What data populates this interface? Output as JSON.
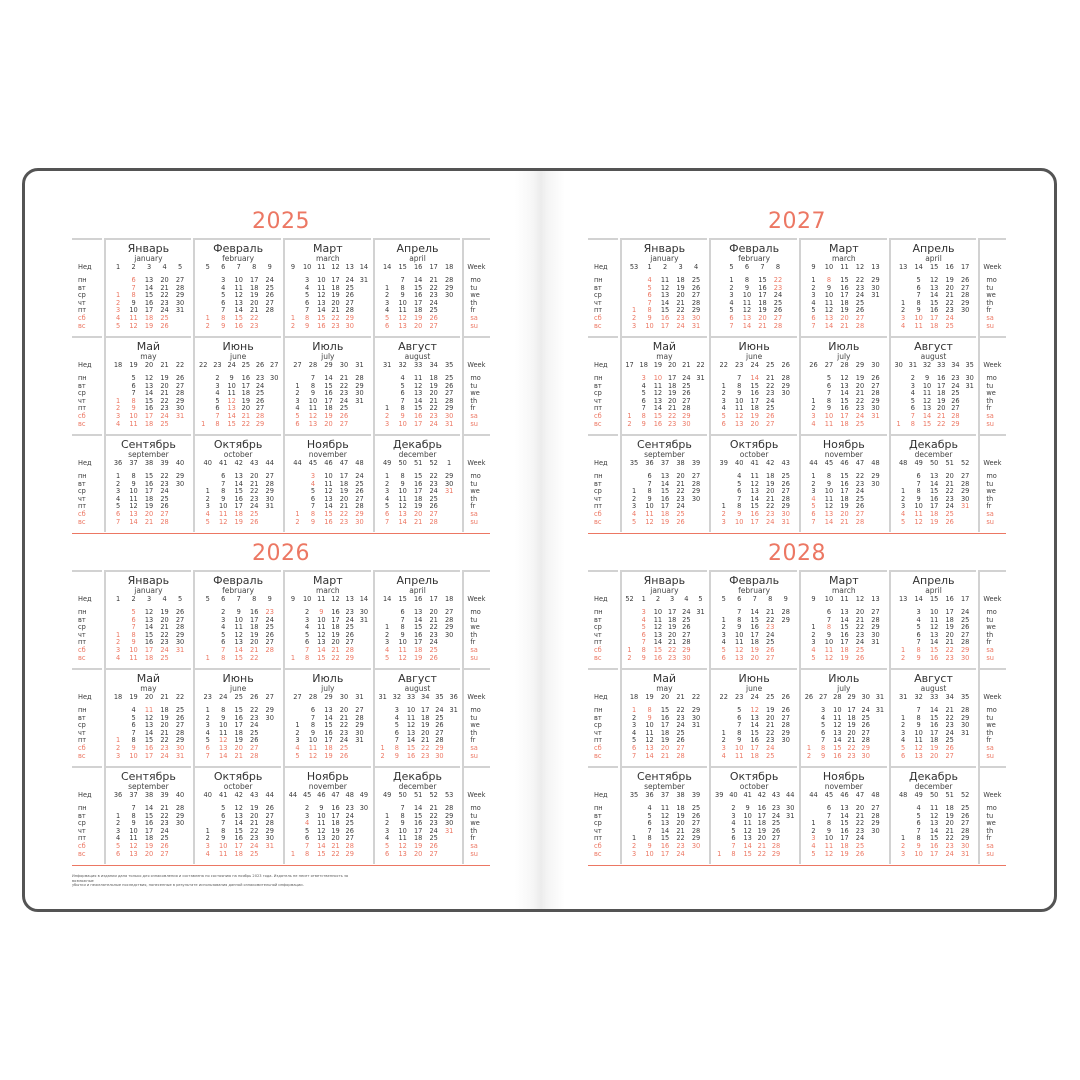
{
  "colors": {
    "accent": "#ec7763",
    "text": "#3a3a3a",
    "border": "#545454"
  },
  "labels": {
    "week_ru": "Нед",
    "week_en": "Week",
    "weekdays_ru": [
      "пн",
      "вт",
      "ср",
      "чт",
      "пт",
      "сб",
      "вс"
    ],
    "weekdays_en": [
      "mo",
      "tu",
      "we",
      "th",
      "fr",
      "sa",
      "su"
    ]
  },
  "month_names": [
    {
      "ru": "Январь",
      "en": "january"
    },
    {
      "ru": "Февраль",
      "en": "february"
    },
    {
      "ru": "Март",
      "en": "march"
    },
    {
      "ru": "Апрель",
      "en": "april"
    },
    {
      "ru": "Май",
      "en": "may"
    },
    {
      "ru": "Июнь",
      "en": "june"
    },
    {
      "ru": "Июль",
      "en": "july"
    },
    {
      "ru": "Август",
      "en": "august"
    },
    {
      "ru": "Сентябрь",
      "en": "september"
    },
    {
      "ru": "Октябрь",
      "en": "october"
    },
    {
      "ru": "Ноябрь",
      "en": "november"
    },
    {
      "ru": "Декабрь",
      "en": "december"
    }
  ],
  "years": [
    {
      "year": "2025",
      "months": [
        {
          "weeks": [
            1,
            2,
            3,
            4,
            5
          ],
          "holidays": [
            1,
            2,
            3,
            6,
            7,
            8
          ],
          "cols": [
            "1 2 3 4 5",
            "6 7 8 9 10 11 12",
            "13 14 15 16 17 18 19",
            "20 21 22 23 24 25 26",
            "27 28 29 30 31"
          ]
        },
        {
          "weeks": [
            5,
            6,
            7,
            8,
            9
          ],
          "holidays": [
            23
          ],
          "cols": [
            "1 2",
            "3 4 5 6 7 8 9",
            "10 11 12 13 14 15 16",
            "17 18 19 20 21 22 23",
            "24 25 26 27 28"
          ]
        },
        {
          "weeks": [
            9,
            10,
            11,
            12,
            13,
            14
          ],
          "holidays": [
            8
          ],
          "cols": [
            "1 2",
            "3 4 5 6 7 8 9",
            "10 11 12 13 14 15 16",
            "17 18 19 20 21 22 23",
            "24 25 26 27 28 29 30",
            "31"
          ]
        },
        {
          "weeks": [
            14,
            15,
            16,
            17,
            18
          ],
          "holidays": [],
          "cols": [
            "1 2 3 4 5 6",
            "7 8 9 10 11 12 13",
            "14 15 16 17 18 19 20",
            "21 22 23 24 25 26 27",
            "28 29 30"
          ]
        },
        {
          "weeks": [
            18,
            19,
            20,
            21,
            22
          ],
          "holidays": [
            1,
            2,
            8,
            9
          ],
          "cols": [
            "1 2 3 4",
            "5 6 7 8 9 10 11",
            "12 13 14 15 16 17 18",
            "19 20 21 22 23 24 25",
            "26 27 28 29 30 31"
          ]
        },
        {
          "weeks": [
            22,
            23,
            24,
            25,
            26,
            27
          ],
          "holidays": [
            12,
            13
          ],
          "cols": [
            "1",
            "2 3 4 5 6 7 8",
            "9 10 11 12 13 14 15",
            "16 17 18 19 20 21 22",
            "23 24 25 26 27 28 29",
            "30"
          ]
        },
        {
          "weeks": [
            27,
            28,
            29,
            30,
            31
          ],
          "holidays": [],
          "cols": [
            "1 2 3 4 5 6",
            "7 8 9 10 11 12 13",
            "14 15 16 17 18 19 20",
            "21 22 23 24 25 26 27",
            "28 29 30 31"
          ]
        },
        {
          "weeks": [
            31,
            32,
            33,
            34,
            35
          ],
          "holidays": [],
          "cols": [
            "1 2 3",
            "4 5 6 7 8 9 10",
            "11 12 13 14 15 16 17",
            "18 19 20 21 22 23 24",
            "25 26 27 28 29 30 31"
          ]
        },
        {
          "weeks": [
            36,
            37,
            38,
            39,
            40
          ],
          "holidays": [],
          "cols": [
            "1 2 3 4 5 6 7",
            "8 9 10 11 12 13 14",
            "15 16 17 18 19 20 21",
            "22 23 24 25 26 27 28",
            "29 30"
          ]
        },
        {
          "weeks": [
            40,
            41,
            42,
            43,
            44
          ],
          "holidays": [],
          "cols": [
            "1 2 3 4 5",
            "6 7 8 9 10 11 12",
            "13 14 15 16 17 18 19",
            "20 21 22 23 24 25 26",
            "27 28 29 30 31"
          ]
        },
        {
          "weeks": [
            44,
            45,
            46,
            47,
            48
          ],
          "holidays": [
            3,
            4
          ],
          "cols": [
            "1 2",
            "3 4 5 6 7 8 9",
            "10 11 12 13 14 15 16",
            "17 18 19 20 21 22 23",
            "24 25 26 27 28 29 30"
          ]
        },
        {
          "weeks": [
            49,
            50,
            51,
            52,
            1
          ],
          "holidays": [
            31
          ],
          "cols": [
            "1 2 3 4 5 6 7",
            "8 9 10 11 12 13 14",
            "15 16 17 18 19 20 21",
            "22 23 24 25 26 27 28",
            "29 30 31"
          ]
        }
      ]
    },
    {
      "year": "2026",
      "months": [
        {
          "weeks": [
            1,
            2,
            3,
            4,
            5
          ],
          "holidays": [
            1,
            2,
            5,
            6,
            7,
            8,
            9
          ],
          "cols": [
            "1 2 3 4",
            "5 6 7 8 9 10 11",
            "12 13 14 15 16 17 18",
            "19 20 21 22 23 24 25",
            "26 27 28 29 30 31"
          ]
        },
        {
          "weeks": [
            5,
            6,
            7,
            8,
            9
          ],
          "holidays": [
            23
          ],
          "cols": [
            "1",
            "2 3 4 5 6 7 8",
            "9 10 11 12 13 14 15",
            "16 17 18 19 20 21 22",
            "23 24 25 26 27 28"
          ]
        },
        {
          "weeks": [
            9,
            10,
            11,
            12,
            13,
            14
          ],
          "holidays": [
            9
          ],
          "cols": [
            "1",
            "2 3 4 5 6 7 8",
            "9 10 11 12 13 14 15",
            "16 17 18 19 20 21 22",
            "23 24 25 26 27 28 29",
            "30 31"
          ]
        },
        {
          "weeks": [
            14,
            15,
            16,
            17,
            18
          ],
          "holidays": [],
          "cols": [
            "1 2 3 4 5",
            "6 7 8 9 10 11 12",
            "13 14 15 16 17 18 19",
            "20 21 22 23 24 25 26",
            "27 28 29 30"
          ]
        },
        {
          "weeks": [
            18,
            19,
            20,
            21,
            22
          ],
          "holidays": [
            1,
            11
          ],
          "cols": [
            "1 2 3",
            "4 5 6 7 8 9 10",
            "11 12 13 14 15 16 17",
            "18 19 20 21 22 23 24",
            "25 26 27 28 29 30 31"
          ]
        },
        {
          "weeks": [
            23,
            24,
            25,
            26,
            27
          ],
          "holidays": [
            12
          ],
          "cols": [
            "1 2 3 4 5 6 7",
            "8 9 10 11 12 13 14",
            "15 16 17 18 19 20 21",
            "22 23 24 25 26 27 28",
            "29 30"
          ]
        },
        {
          "weeks": [
            27,
            28,
            29,
            30,
            31
          ],
          "holidays": [],
          "cols": [
            "1 2 3 4 5",
            "6 7 8 9 10 11 12",
            "13 14 15 16 17 18 19",
            "20 21 22 23 24 25 26",
            "27 28 29 30 31"
          ]
        },
        {
          "weeks": [
            31,
            32,
            33,
            34,
            35,
            36
          ],
          "holidays": [],
          "cols": [
            "1 2",
            "3 4 5 6 7 8 9",
            "10 11 12 13 14 15 16",
            "17 18 19 20 21 22 23",
            "24 25 26 27 28 29 30",
            "31"
          ]
        },
        {
          "weeks": [
            36,
            37,
            38,
            39,
            40
          ],
          "holidays": [],
          "cols": [
            "1 2 3 4 5 6",
            "7 8 9 10 11 12 13",
            "14 15 16 17 18 19 20",
            "21 22 23 24 25 26 27",
            "28 29 30"
          ]
        },
        {
          "weeks": [
            40,
            41,
            42,
            43,
            44
          ],
          "holidays": [],
          "cols": [
            "1 2 3 4",
            "5 6 7 8 9 10 11",
            "12 13 14 15 16 17 18",
            "19 20 21 22 23 24 25",
            "26 27 28 29 30 31"
          ]
        },
        {
          "weeks": [
            44,
            45,
            46,
            47,
            48,
            49
          ],
          "holidays": [
            4
          ],
          "cols": [
            "1",
            "2 3 4 5 6 7 8",
            "9 10 11 12 13 14 15",
            "16 17 18 19 20 21 22",
            "23 24 25 26 27 28 29",
            "30"
          ]
        },
        {
          "weeks": [
            49,
            50,
            51,
            52,
            53
          ],
          "holidays": [
            31
          ],
          "cols": [
            "1 2 3 4 5 6",
            "7 8 9 10 11 12 13",
            "14 15 16 17 18 19 20",
            "21 22 23 24 25 26 27",
            "28 29 30 31"
          ]
        }
      ]
    },
    {
      "year": "2027",
      "months": [
        {
          "weeks": [
            53,
            1,
            2,
            3,
            4
          ],
          "holidays": [
            1,
            4,
            5,
            6,
            7,
            8
          ],
          "cols": [
            "1 2 3",
            "4 5 6 7 8 9 10",
            "11 12 13 14 15 16 17",
            "18 19 20 21 22 23 24",
            "25 26 27 28 29 30 31"
          ]
        },
        {
          "weeks": [
            5,
            6,
            7,
            8
          ],
          "holidays": [
            22,
            23
          ],
          "cols": [
            "1 2 3 4 5 6 7",
            "8 9 10 11 12 13 14",
            "15 16 17 18 19 20 21",
            "22 23 24 25 26 27 28"
          ]
        },
        {
          "weeks": [
            9,
            10,
            11,
            12,
            13
          ],
          "holidays": [
            8
          ],
          "cols": [
            "1 2 3 4 5 6 7",
            "8 9 10 11 12 13 14",
            "15 16 17 18 19 20 21",
            "22 23 24 25 26 27 28",
            "29 30 31"
          ]
        },
        {
          "weeks": [
            13,
            14,
            15,
            16,
            17
          ],
          "holidays": [],
          "cols": [
            "1 2 3 4",
            "5 6 7 8 9 10 11",
            "12 13 14 15 16 17 18",
            "19 20 21 22 23 24 25",
            "26 27 28 29 30"
          ]
        },
        {
          "weeks": [
            17,
            18,
            19,
            20,
            21,
            22
          ],
          "holidays": [
            3,
            10
          ],
          "cols": [
            "1 2",
            "3 4 5 6 7 8 9",
            "10 11 12 13 14 15 16",
            "17 18 19 20 21 22 23",
            "24 25 26 27 28 29 30",
            "31"
          ]
        },
        {
          "weeks": [
            22,
            23,
            24,
            25,
            26
          ],
          "holidays": [
            14
          ],
          "cols": [
            "1 2 3 4 5 6",
            "7 8 9 10 11 12 13",
            "14 15 16 17 18 19 20",
            "21 22 23 24 25 26 27",
            "28 29 30"
          ]
        },
        {
          "weeks": [
            26,
            27,
            28,
            29,
            30
          ],
          "holidays": [],
          "cols": [
            "1 2 3 4",
            "5 6 7 8 9 10 11",
            "12 13 14 15 16 17 18",
            "19 20 21 22 23 24 25",
            "26 27 28 29 30 31"
          ]
        },
        {
          "weeks": [
            30,
            31,
            32,
            33,
            34,
            35
          ],
          "holidays": [],
          "cols": [
            "1",
            "2 3 4 5 6 7 8",
            "9 10 11 12 13 14 15",
            "16 17 18 19 20 21 22",
            "23 24 25 26 27 28 29",
            "30 31"
          ]
        },
        {
          "weeks": [
            35,
            36,
            37,
            38,
            39
          ],
          "holidays": [],
          "cols": [
            "1 2 3 4 5",
            "6 7 8 9 10 11 12",
            "13 14 15 16 17 18 19",
            "20 21 22 23 24 25 26",
            "27 28 29 30"
          ]
        },
        {
          "weeks": [
            39,
            40,
            41,
            42,
            43
          ],
          "holidays": [],
          "cols": [
            "1 2 3",
            "4 5 6 7 8 9 10",
            "11 12 13 14 15 16 17",
            "18 19 20 21 22 23 24",
            "25 26 27 28 29 30 31"
          ]
        },
        {
          "weeks": [
            44,
            45,
            46,
            47,
            48
          ],
          "holidays": [
            4,
            5
          ],
          "cols": [
            "1 2 3 4 5 6 7",
            "8 9 10 11 12 13 14",
            "15 16 17 18 19 20 21",
            "22 23 24 25 26 27 28",
            "29 30"
          ]
        },
        {
          "weeks": [
            48,
            49,
            50,
            51,
            52
          ],
          "holidays": [
            31
          ],
          "cols": [
            "1 2 3 4 5",
            "6 7 8 9 10 11 12",
            "13 14 15 16 17 18 19",
            "20 21 22 23 24 25 26",
            "27 28 29 30 31"
          ]
        }
      ]
    },
    {
      "year": "2028",
      "months": [
        {
          "weeks": [
            52,
            1,
            2,
            3,
            4,
            5
          ],
          "holidays": [
            1,
            2,
            3,
            4,
            5,
            6,
            7,
            8
          ],
          "cols": [
            "1 2",
            "3 4 5 6 7 8 9",
            "10 11 12 13 14 15 16",
            "17 18 19 20 21 22 23",
            "24 25 26 27 28 29 30",
            "31"
          ]
        },
        {
          "weeks": [
            5,
            6,
            7,
            8,
            9
          ],
          "holidays": [
            23
          ],
          "cols": [
            "1 2 3 4 5 6",
            "7 8 9 10 11 12 13",
            "14 15 16 17 18 19 20",
            "21 22 23 24 25 26 27",
            "28 29"
          ]
        },
        {
          "weeks": [
            9,
            10,
            11,
            12,
            13
          ],
          "holidays": [
            8
          ],
          "cols": [
            "1 2 3 4 5",
            "6 7 8 9 10 11 12",
            "13 14 15 16 17 18 19",
            "20 21 22 23 24 25 26",
            "27 28 29 30 31"
          ]
        },
        {
          "weeks": [
            13,
            14,
            15,
            16,
            17
          ],
          "holidays": [],
          "cols": [
            "1 2",
            "3 4 5 6 7 8 9",
            "10 11 12 13 14 15 16",
            "17 18 19 20 21 22 23",
            "24 25 26 27 28 29 30"
          ]
        },
        {
          "weeks": [
            18,
            19,
            20,
            21,
            22
          ],
          "holidays": [
            1,
            8,
            9
          ],
          "cols": [
            "1 2 3 4 5 6 7",
            "8 9 10 11 12 13 14",
            "15 16 17 18 19 20 21",
            "22 23 24 25 26 27 28",
            "29 30 31"
          ]
        },
        {
          "weeks": [
            22,
            23,
            24,
            25,
            26
          ],
          "holidays": [
            12
          ],
          "cols": [
            "1 2 3 4",
            "5 6 7 8 9 10 11",
            "12 13 14 15 16 17 18",
            "19 20 21 22 23 24 25",
            "26 27 28 29 30"
          ]
        },
        {
          "weeks": [
            26,
            27,
            28,
            29,
            30,
            31
          ],
          "holidays": [],
          "cols": [
            "1 2",
            "3 4 5 6 7 8 9",
            "10 11 12 13 14 15 16",
            "17 18 19 20 21 22 23",
            "24 25 26 27 28 29 30",
            "31"
          ]
        },
        {
          "weeks": [
            31,
            32,
            33,
            34,
            35
          ],
          "holidays": [],
          "cols": [
            "1 2 3 4 5 6",
            "7 8 9 10 11 12 13",
            "14 15 16 17 18 19 20",
            "21 22 23 24 25 26 27",
            "28 29 30 31"
          ]
        },
        {
          "weeks": [
            35,
            36,
            37,
            38,
            39
          ],
          "holidays": [],
          "cols": [
            "1 2 3",
            "4 5 6 7 8 9 10",
            "11 12 13 14 15 16 17",
            "18 19 20 21 22 23 24",
            "25 26 27 28 29 30"
          ]
        },
        {
          "weeks": [
            39,
            40,
            41,
            42,
            43,
            44
          ],
          "holidays": [],
          "cols": [
            "1",
            "2 3 4 5 6 7 8",
            "9 10 11 12 13 14 15",
            "16 17 18 19 20 21 22",
            "23 24 25 26 27 28 29",
            "30 31"
          ]
        },
        {
          "weeks": [
            44,
            45,
            46,
            47,
            48
          ],
          "holidays": [
            3,
            4
          ],
          "cols": [
            "1 2 3 4 5",
            "6 7 8 9 10 11 12",
            "13 14 15 16 17 18 19",
            "20 21 22 23 24 25 26",
            "27 28 29 30"
          ]
        },
        {
          "weeks": [
            48,
            49,
            50,
            51,
            52
          ],
          "holidays": [
            31
          ],
          "cols": [
            "1 2 3",
            "4 5 6 7 8 9 10",
            "11 12 13 14 15 16 17",
            "18 19 20 21 22 23 24",
            "25 26 27 28 29 30 31"
          ]
        }
      ]
    }
  ],
  "footer": {
    "line1": "Информация в издании дана только для ознакомления и составлена по состоянию на ноябрь 2023 года. Издатель не несет ответственность за возможные",
    "line2": "убытки и нежелательные последствия, понесенные в результате использования данной ознакомительной информации."
  }
}
